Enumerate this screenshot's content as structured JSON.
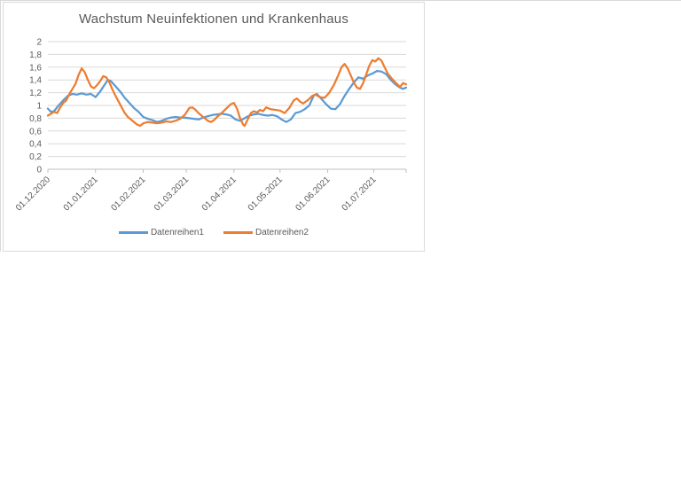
{
  "chart": {
    "title": "Wachstum Neuinfektionen und Krankenhaus",
    "title_color": "#595959",
    "frame_border_color": "#d9d9d9",
    "gridline_color": "#d9d9d9",
    "axis_line_color": "#bfbfbf",
    "label_color": "#595959",
    "legend": [
      {
        "label": "Datenreihen1",
        "color": "#5b9bd5"
      },
      {
        "label": "Datenreihen2",
        "color": "#ed7d31"
      }
    ]
  },
  "chart_data": {
    "type": "line",
    "title": "Wachstum Neuinfektionen und Krankenhaus",
    "xlabel": "",
    "ylabel": "",
    "grid": true,
    "legend_position": "bottom",
    "ylim": [
      0,
      2
    ],
    "y_tick_values": [
      0,
      0.2,
      0.4,
      0.6,
      0.8,
      1,
      1.2,
      1.4,
      1.6,
      1.8,
      2
    ],
    "y_tick_labels": [
      "0",
      "0,2",
      "0,4",
      "0,6",
      "0,8",
      "1",
      "1,2",
      "1,4",
      "1,6",
      "1,8",
      "2"
    ],
    "x_unit": "days since 01.12.2020",
    "x_range_days": [
      0,
      233
    ],
    "x_tick_days": [
      0,
      31,
      62,
      90,
      121,
      151,
      182,
      212
    ],
    "x_tick_labels": [
      "01.12.2020",
      "01.01.2021",
      "01.02.2021",
      "01.03.2021",
      "01.04.2021",
      "01.05.2021",
      "01.06.2021",
      "01.07.2021"
    ],
    "series": [
      {
        "name": "Datenreihen1",
        "color": "#5b9bd5",
        "points": [
          [
            0,
            0.95
          ],
          [
            2,
            0.9
          ],
          [
            4,
            0.91
          ],
          [
            7,
            1.0
          ],
          [
            10,
            1.08
          ],
          [
            13,
            1.15
          ],
          [
            16,
            1.18
          ],
          [
            19,
            1.17
          ],
          [
            22,
            1.19
          ],
          [
            25,
            1.17
          ],
          [
            28,
            1.18
          ],
          [
            31,
            1.13
          ],
          [
            34,
            1.22
          ],
          [
            37,
            1.33
          ],
          [
            39,
            1.4
          ],
          [
            41,
            1.38
          ],
          [
            44,
            1.3
          ],
          [
            47,
            1.22
          ],
          [
            50,
            1.12
          ],
          [
            53,
            1.04
          ],
          [
            56,
            0.96
          ],
          [
            59,
            0.9
          ],
          [
            62,
            0.82
          ],
          [
            65,
            0.79
          ],
          [
            68,
            0.77
          ],
          [
            71,
            0.74
          ],
          [
            74,
            0.76
          ],
          [
            77,
            0.79
          ],
          [
            80,
            0.81
          ],
          [
            83,
            0.82
          ],
          [
            86,
            0.81
          ],
          [
            89,
            0.81
          ],
          [
            92,
            0.8
          ],
          [
            95,
            0.79
          ],
          [
            98,
            0.78
          ],
          [
            101,
            0.81
          ],
          [
            104,
            0.83
          ],
          [
            107,
            0.85
          ],
          [
            110,
            0.86
          ],
          [
            113,
            0.87
          ],
          [
            116,
            0.86
          ],
          [
            119,
            0.84
          ],
          [
            122,
            0.78
          ],
          [
            125,
            0.76
          ],
          [
            128,
            0.8
          ],
          [
            131,
            0.84
          ],
          [
            134,
            0.86
          ],
          [
            137,
            0.87
          ],
          [
            140,
            0.85
          ],
          [
            143,
            0.84
          ],
          [
            146,
            0.85
          ],
          [
            149,
            0.83
          ],
          [
            152,
            0.78
          ],
          [
            155,
            0.74
          ],
          [
            158,
            0.78
          ],
          [
            161,
            0.88
          ],
          [
            164,
            0.9
          ],
          [
            167,
            0.94
          ],
          [
            170,
            1.0
          ],
          [
            173,
            1.16
          ],
          [
            175,
            1.18
          ],
          [
            178,
            1.1
          ],
          [
            181,
            1.02
          ],
          [
            184,
            0.95
          ],
          [
            187,
            0.94
          ],
          [
            190,
            1.02
          ],
          [
            193,
            1.15
          ],
          [
            196,
            1.26
          ],
          [
            199,
            1.36
          ],
          [
            202,
            1.44
          ],
          [
            205,
            1.42
          ],
          [
            208,
            1.47
          ],
          [
            211,
            1.5
          ],
          [
            214,
            1.54
          ],
          [
            217,
            1.53
          ],
          [
            220,
            1.49
          ],
          [
            223,
            1.4
          ],
          [
            226,
            1.33
          ],
          [
            229,
            1.28
          ],
          [
            231,
            1.26
          ],
          [
            233,
            1.28
          ]
        ]
      },
      {
        "name": "Datenreihen2",
        "color": "#ed7d31",
        "points": [
          [
            0,
            0.84
          ],
          [
            2,
            0.87
          ],
          [
            4,
            0.9
          ],
          [
            6,
            0.88
          ],
          [
            8,
            0.97
          ],
          [
            10,
            1.04
          ],
          [
            12,
            1.08
          ],
          [
            14,
            1.18
          ],
          [
            16,
            1.26
          ],
          [
            18,
            1.34
          ],
          [
            20,
            1.48
          ],
          [
            22,
            1.58
          ],
          [
            24,
            1.52
          ],
          [
            26,
            1.4
          ],
          [
            28,
            1.3
          ],
          [
            30,
            1.27
          ],
          [
            32,
            1.32
          ],
          [
            34,
            1.38
          ],
          [
            36,
            1.46
          ],
          [
            38,
            1.44
          ],
          [
            40,
            1.36
          ],
          [
            42,
            1.25
          ],
          [
            44,
            1.15
          ],
          [
            46,
            1.06
          ],
          [
            48,
            0.97
          ],
          [
            50,
            0.88
          ],
          [
            52,
            0.82
          ],
          [
            54,
            0.78
          ],
          [
            56,
            0.74
          ],
          [
            58,
            0.7
          ],
          [
            60,
            0.68
          ],
          [
            62,
            0.72
          ],
          [
            65,
            0.74
          ],
          [
            68,
            0.73
          ],
          [
            71,
            0.72
          ],
          [
            74,
            0.73
          ],
          [
            77,
            0.75
          ],
          [
            80,
            0.74
          ],
          [
            83,
            0.76
          ],
          [
            86,
            0.79
          ],
          [
            89,
            0.85
          ],
          [
            92,
            0.96
          ],
          [
            94,
            0.97
          ],
          [
            96,
            0.93
          ],
          [
            98,
            0.88
          ],
          [
            101,
            0.82
          ],
          [
            104,
            0.76
          ],
          [
            106,
            0.74
          ],
          [
            108,
            0.77
          ],
          [
            110,
            0.82
          ],
          [
            113,
            0.88
          ],
          [
            116,
            0.95
          ],
          [
            119,
            1.02
          ],
          [
            121,
            1.04
          ],
          [
            123,
            0.95
          ],
          [
            125,
            0.8
          ],
          [
            127,
            0.7
          ],
          [
            128,
            0.68
          ],
          [
            130,
            0.78
          ],
          [
            132,
            0.88
          ],
          [
            134,
            0.91
          ],
          [
            136,
            0.89
          ],
          [
            138,
            0.93
          ],
          [
            140,
            0.91
          ],
          [
            142,
            0.97
          ],
          [
            145,
            0.94
          ],
          [
            148,
            0.93
          ],
          [
            151,
            0.92
          ],
          [
            154,
            0.88
          ],
          [
            157,
            0.96
          ],
          [
            160,
            1.08
          ],
          [
            162,
            1.11
          ],
          [
            164,
            1.06
          ],
          [
            166,
            1.03
          ],
          [
            169,
            1.08
          ],
          [
            172,
            1.15
          ],
          [
            174,
            1.17
          ],
          [
            177,
            1.13
          ],
          [
            180,
            1.12
          ],
          [
            183,
            1.2
          ],
          [
            186,
            1.32
          ],
          [
            189,
            1.48
          ],
          [
            191,
            1.6
          ],
          [
            193,
            1.65
          ],
          [
            195,
            1.58
          ],
          [
            197,
            1.47
          ],
          [
            199,
            1.36
          ],
          [
            201,
            1.28
          ],
          [
            203,
            1.26
          ],
          [
            205,
            1.35
          ],
          [
            207,
            1.48
          ],
          [
            209,
            1.62
          ],
          [
            211,
            1.71
          ],
          [
            213,
            1.69
          ],
          [
            215,
            1.74
          ],
          [
            217,
            1.7
          ],
          [
            219,
            1.6
          ],
          [
            221,
            1.5
          ],
          [
            223,
            1.44
          ],
          [
            226,
            1.36
          ],
          [
            229,
            1.29
          ],
          [
            231,
            1.35
          ],
          [
            233,
            1.33
          ]
        ]
      }
    ]
  }
}
